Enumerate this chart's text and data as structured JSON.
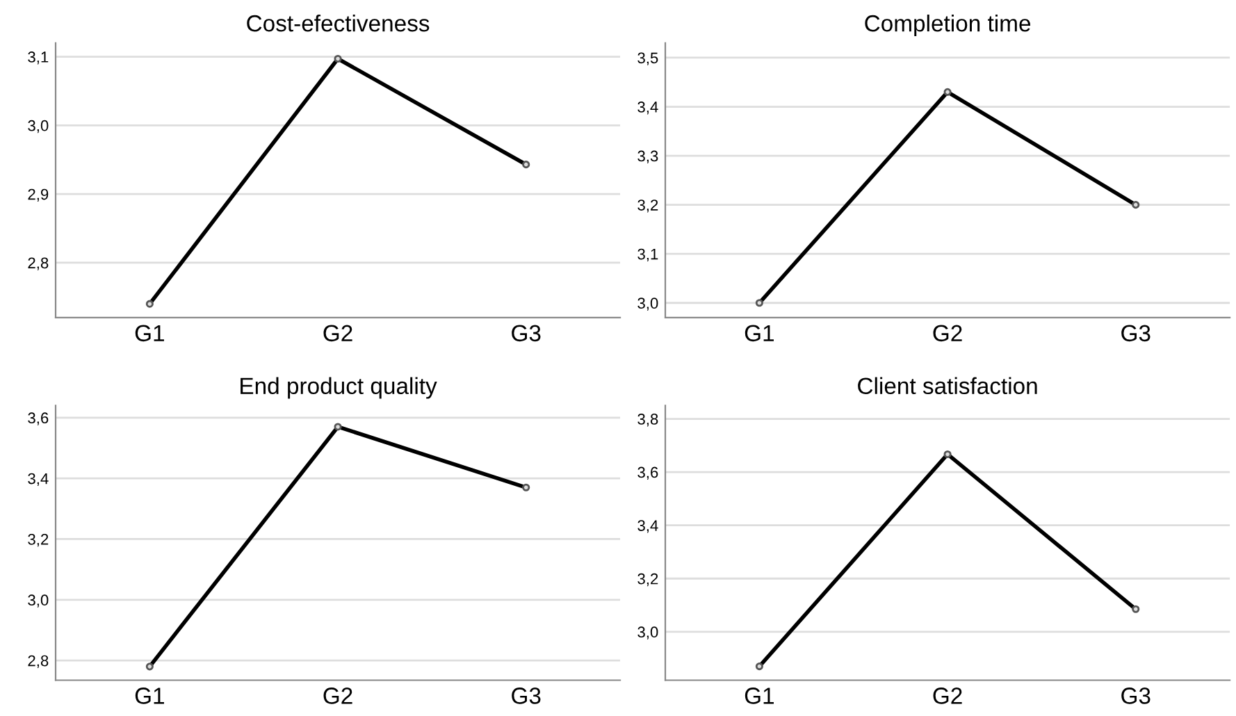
{
  "chart_data": [
    {
      "type": "line",
      "title": "Cost-efectiveness",
      "categories": [
        "G1",
        "G2",
        "G3"
      ],
      "values": [
        2.74,
        3.097,
        2.943
      ],
      "color": "#000000",
      "marker": "circle",
      "grid": "y",
      "ylim": [
        2.72,
        3.12
      ],
      "yticks": [
        {
          "value": 2.8,
          "label": "2,8"
        },
        {
          "value": 2.9,
          "label": "2,9"
        },
        {
          "value": 3.0,
          "label": "3,0"
        },
        {
          "value": 3.1,
          "label": "3,1"
        }
      ]
    },
    {
      "type": "line",
      "title": "Completion time",
      "categories": [
        "G1",
        "G2",
        "G3"
      ],
      "values": [
        3.0,
        3.43,
        3.2
      ],
      "color": "#000000",
      "marker": "circle",
      "grid": "y",
      "ylim": [
        2.97,
        3.53
      ],
      "yticks": [
        {
          "value": 3.0,
          "label": "3,0"
        },
        {
          "value": 3.1,
          "label": "3,1"
        },
        {
          "value": 3.2,
          "label": "3,2"
        },
        {
          "value": 3.3,
          "label": "3,3"
        },
        {
          "value": 3.4,
          "label": "3,4"
        },
        {
          "value": 3.5,
          "label": "3,5"
        }
      ]
    },
    {
      "type": "line",
      "title": "End product quality",
      "categories": [
        "G1",
        "G2",
        "G3"
      ],
      "values": [
        2.78,
        3.57,
        3.37
      ],
      "color": "#000000",
      "marker": "circle",
      "grid": "y",
      "ylim": [
        2.735,
        3.64
      ],
      "yticks": [
        {
          "value": 2.8,
          "label": "2,8"
        },
        {
          "value": 3.0,
          "label": "3,0"
        },
        {
          "value": 3.2,
          "label": "3,2"
        },
        {
          "value": 3.4,
          "label": "3,4"
        },
        {
          "value": 3.6,
          "label": "3,6"
        }
      ]
    },
    {
      "type": "line",
      "title": "Client satisfaction",
      "categories": [
        "G1",
        "G2",
        "G3"
      ],
      "values": [
        2.87,
        3.667,
        3.085
      ],
      "color": "#000000",
      "marker": "circle",
      "grid": "y",
      "ylim": [
        2.818,
        3.85
      ],
      "yticks": [
        {
          "value": 3.0,
          "label": "3,0"
        },
        {
          "value": 3.2,
          "label": "3,2"
        },
        {
          "value": 3.4,
          "label": "3,4"
        },
        {
          "value": 3.6,
          "label": "3,6"
        },
        {
          "value": 3.8,
          "label": "3,8"
        }
      ]
    }
  ]
}
